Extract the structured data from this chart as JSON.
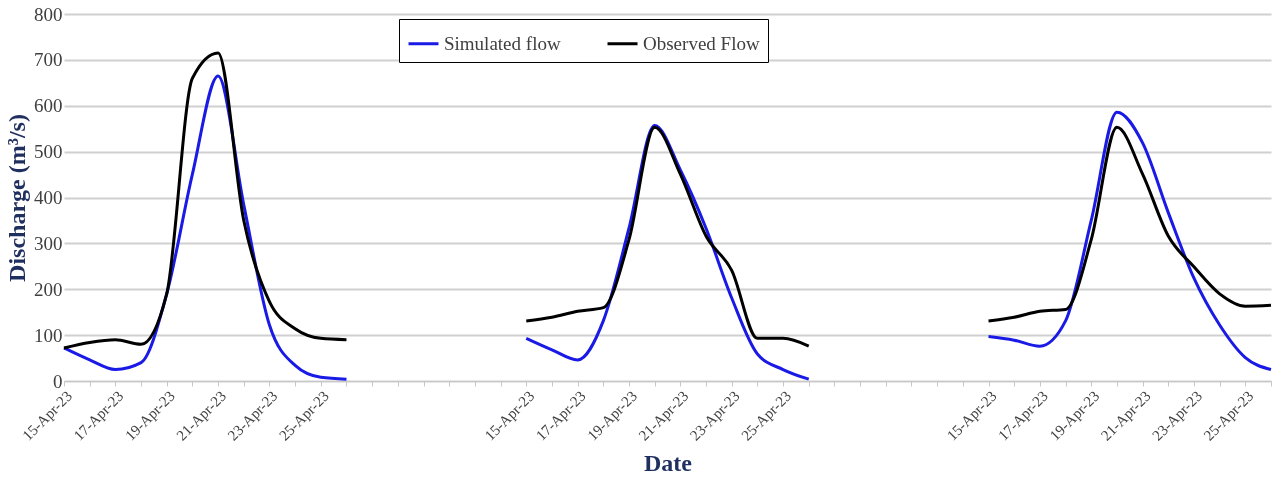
{
  "chart_data": {
    "type": "line",
    "xlabel": "Date",
    "ylabel": "Discharge (m³/s)",
    "categories": [
      "15-Apr-23",
      null,
      "17-Apr-23",
      null,
      "19-Apr-23",
      null,
      "21-Apr-23",
      null,
      "23-Apr-23",
      null,
      "25-Apr-23",
      null,
      null,
      null,
      null,
      null,
      null,
      null,
      "15-Apr-23",
      null,
      "17-Apr-23",
      null,
      "19-Apr-23",
      null,
      "21-Apr-23",
      null,
      "23-Apr-23",
      null,
      "25-Apr-23",
      null,
      null,
      null,
      null,
      null,
      null,
      null,
      "15-Apr-23",
      null,
      "17-Apr-23",
      null,
      "19-Apr-23",
      null,
      "21-Apr-23",
      null,
      "23-Apr-23",
      null,
      "25-Apr-23",
      null
    ],
    "series": [
      {
        "name": "Simulated flow",
        "color": "#1a1ae6",
        "values": [
          72,
          46,
          25,
          40,
          190,
          451,
          665,
          384,
          122,
          34,
          8,
          4,
          null,
          null,
          null,
          null,
          null,
          null,
          93,
          68,
          46,
          131,
          333,
          557,
          460,
          333,
          181,
          59,
          25,
          4,
          null,
          null,
          null,
          null,
          null,
          null,
          97,
          89,
          76,
          131,
          350,
          586,
          519,
          367,
          224,
          122,
          51,
          25
        ]
      },
      {
        "name": "Observed Flow",
        "color": "#000000",
        "values": [
          72,
          84,
          90,
          80,
          190,
          660,
          715,
          350,
          173,
          114,
          93,
          90,
          null,
          null,
          null,
          null,
          null,
          null,
          131,
          139,
          152,
          160,
          308,
          553,
          451,
          316,
          241,
          93,
          93,
          76,
          null,
          null,
          null,
          null,
          null,
          null,
          131,
          139,
          152,
          156,
          308,
          553,
          451,
          316,
          249,
          190,
          163,
          165
        ]
      }
    ],
    "ylim": [
      0,
      800
    ],
    "yticks": [
      0,
      100,
      200,
      300,
      400,
      500,
      600,
      700,
      800
    ],
    "grid": "y",
    "legend": "top",
    "line_style": "solid",
    "marker": "none"
  }
}
